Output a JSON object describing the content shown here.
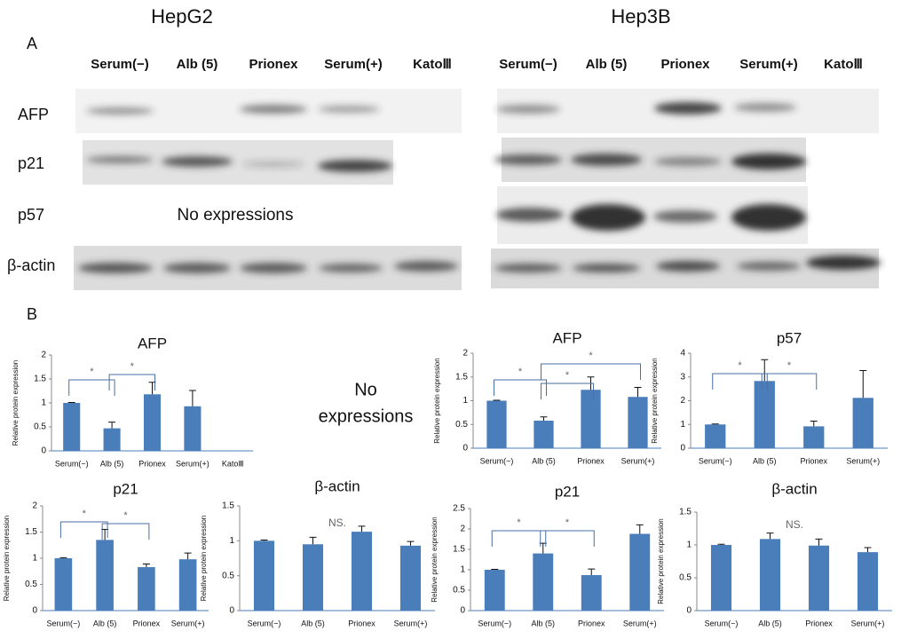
{
  "panel_labels": [
    "A",
    "B"
  ],
  "blots": [
    {
      "title": "HepG2",
      "lanes": [
        "Serum(−)",
        "Alb (5)",
        "Prionex",
        "Serum(+)",
        "KatoⅢ"
      ],
      "rows": [
        "AFP",
        "p21",
        "p57",
        "β-actin"
      ],
      "note": "No expressions"
    },
    {
      "title": "Hep3B",
      "lanes": [
        "Serum(−)",
        "Alb (5)",
        "Prionex",
        "Serum(+)",
        "KatoⅢ"
      ]
    }
  ],
  "no_expressions_chart": [
    "No",
    "expressions"
  ],
  "chart_data": [
    {
      "type": "bar",
      "title": "AFP",
      "y_label": "Relative protein expression",
      "categories": [
        "Serum(−)",
        "Alb (5)",
        "Prionex",
        "Serum(+)",
        "KatoⅢ"
      ],
      "values": [
        1,
        0.47,
        1.18,
        0.93,
        null
      ],
      "errors": [
        0.01,
        0.13,
        0.25,
        0.33,
        null
      ],
      "color": "#4a7ebb",
      "ylim": [
        0,
        2
      ],
      "yticks": [
        0,
        0.5,
        1,
        1.5,
        2
      ],
      "annotations": [
        "*",
        "*"
      ]
    },
    {
      "type": "bar",
      "title": "AFP",
      "y_label": "Relative protein expression",
      "categories": [
        "Serum(−)",
        "Alb (5)",
        "Prionex",
        "Serum(+)"
      ],
      "values": [
        1,
        0.58,
        1.23,
        1.08
      ],
      "errors": [
        0.01,
        0.08,
        0.27,
        0.2
      ],
      "color": "#4a7ebb",
      "ylim": [
        0,
        2
      ],
      "yticks": [
        0,
        0.5,
        1,
        1.5,
        2
      ],
      "annotations": [
        "*",
        "*",
        "*"
      ]
    },
    {
      "type": "bar",
      "title": "p57",
      "y_label": "Relative protein expression",
      "categories": [
        "Serum(−)",
        "Alb (5)",
        "Prionex",
        "Serum(+)"
      ],
      "values": [
        1,
        2.83,
        0.92,
        2.12
      ],
      "errors": [
        0.02,
        0.9,
        0.22,
        1.15
      ],
      "color": "#4a7ebb",
      "ylim": [
        0,
        4
      ],
      "yticks": [
        0,
        1,
        2,
        3,
        4
      ],
      "annotations": [
        "*",
        "*"
      ]
    },
    {
      "type": "bar",
      "title": "p21",
      "y_label": "Relative protein expression",
      "categories": [
        "Serum(−)",
        "Alb (5)",
        "Prionex",
        "Serum(+)"
      ],
      "values": [
        1,
        1.35,
        0.83,
        0.98
      ],
      "errors": [
        0.01,
        0.2,
        0.06,
        0.12
      ],
      "color": "#4a7ebb",
      "ylim": [
        0,
        2
      ],
      "yticks": [
        0,
        0.5,
        1,
        1.5,
        2
      ],
      "annotations": [
        "*",
        "*"
      ]
    },
    {
      "type": "bar",
      "title": "β-actin",
      "y_label": "Relative protein expression",
      "categories": [
        "Serum(−)",
        "Alb (5)",
        "Prionex",
        "Serum(+)"
      ],
      "values": [
        1,
        0.95,
        1.13,
        0.93
      ],
      "errors": [
        0.01,
        0.1,
        0.08,
        0.06
      ],
      "color": "#4a7ebb",
      "ylim": [
        0,
        1.5
      ],
      "yticks": [
        0,
        0.5,
        1,
        1.5
      ],
      "annotations": [
        "NS."
      ]
    },
    {
      "type": "bar",
      "title": "p21",
      "y_label": "Relative protein expression",
      "categories": [
        "Serum(−)",
        "Alb (5)",
        "Prionex",
        "Serum(+)"
      ],
      "values": [
        1,
        1.4,
        0.87,
        1.88
      ],
      "errors": [
        0.01,
        0.25,
        0.15,
        0.22
      ],
      "color": "#4a7ebb",
      "ylim": [
        0,
        2.5
      ],
      "yticks": [
        0,
        0.5,
        1,
        1.5,
        2,
        2.5
      ],
      "annotations": [
        "*",
        "*"
      ]
    },
    {
      "type": "bar",
      "title": "β-actin",
      "y_label": "Relative protein expression",
      "categories": [
        "Serum(−)",
        "Alb (5)",
        "Prionex",
        "Serum(+)"
      ],
      "values": [
        1,
        1.09,
        0.99,
        0.89
      ],
      "errors": [
        0.01,
        0.09,
        0.1,
        0.07
      ],
      "color": "#4a7ebb",
      "ylim": [
        0,
        1.5
      ],
      "yticks": [
        0,
        0.5,
        1,
        1.5
      ],
      "annotations": [
        "NS."
      ]
    }
  ]
}
